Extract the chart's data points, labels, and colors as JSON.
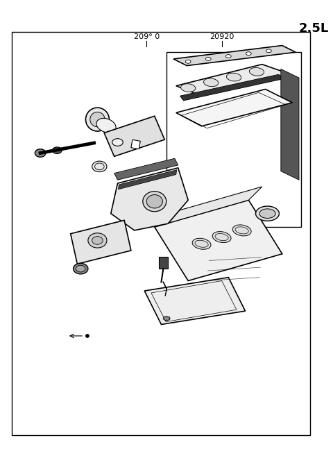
{
  "title": "2.5L",
  "label_main": "209° 0",
  "label_sub": "20920",
  "bg_color": "#ffffff",
  "border_color": "#000000",
  "line_color": "#000000",
  "fig_width": 4.8,
  "fig_height": 6.57,
  "dpi": 100
}
